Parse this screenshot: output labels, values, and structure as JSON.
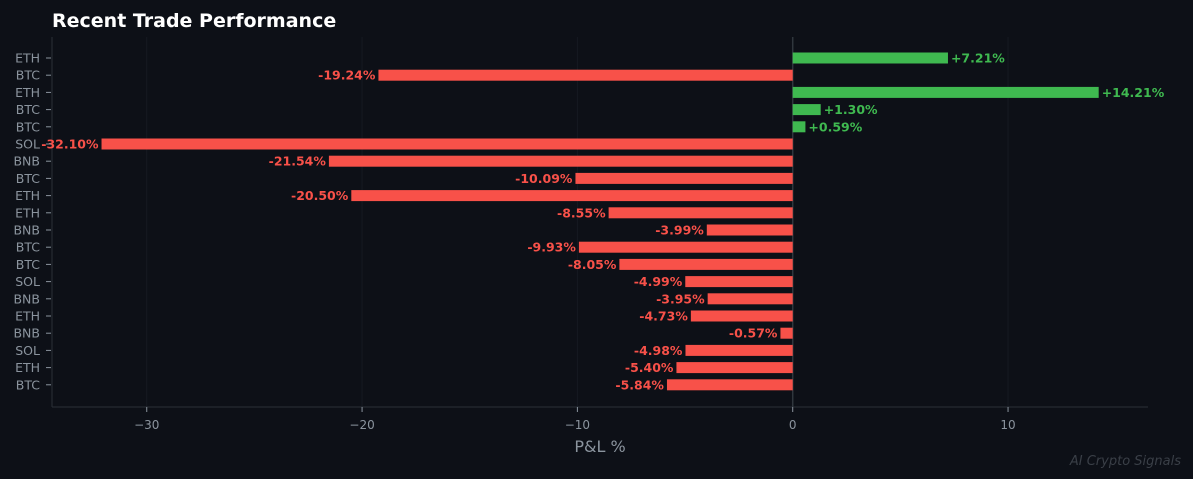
{
  "chart_data": {
    "type": "bar",
    "orientation": "horizontal",
    "title": "Recent Trade Performance",
    "xlabel": "P&L %",
    "ylabel": "",
    "xlim": [
      -34.4,
      16.5
    ],
    "xticks": [
      -30,
      -20,
      -10,
      0,
      10
    ],
    "xtick_labels": [
      "−30",
      "−20",
      "−10",
      "0",
      "10"
    ],
    "grid": true,
    "categories": [
      "ETH",
      "BTC",
      "ETH",
      "BTC",
      "BTC",
      "SOL",
      "BNB",
      "BTC",
      "ETH",
      "ETH",
      "BNB",
      "BTC",
      "BTC",
      "SOL",
      "BNB",
      "ETH",
      "BNB",
      "SOL",
      "ETH",
      "BTC"
    ],
    "values": [
      7.21,
      -19.24,
      14.21,
      1.3,
      0.59,
      -32.1,
      -21.54,
      -10.09,
      -20.5,
      -8.55,
      -3.99,
      -9.93,
      -8.05,
      -4.99,
      -3.95,
      -4.73,
      -0.57,
      -4.98,
      -5.4,
      -5.84
    ],
    "data_labels": [
      "+7.21%",
      "-19.24%",
      "+14.21%",
      "+1.30%",
      "+0.59%",
      "-32.10%",
      "-21.54%",
      "-10.09%",
      "-20.50%",
      "-8.55%",
      "-3.99%",
      "-9.93%",
      "-8.05%",
      "-4.99%",
      "-3.95%",
      "-4.73%",
      "-0.57%",
      "-4.98%",
      "-5.40%",
      "-5.84%"
    ],
    "colors": {
      "positive": "#3fb950",
      "negative": "#f85149",
      "background": "#0d1017",
      "text": "#8b949e",
      "title": "#ffffff"
    }
  },
  "watermark": "AI Crypto Signals"
}
